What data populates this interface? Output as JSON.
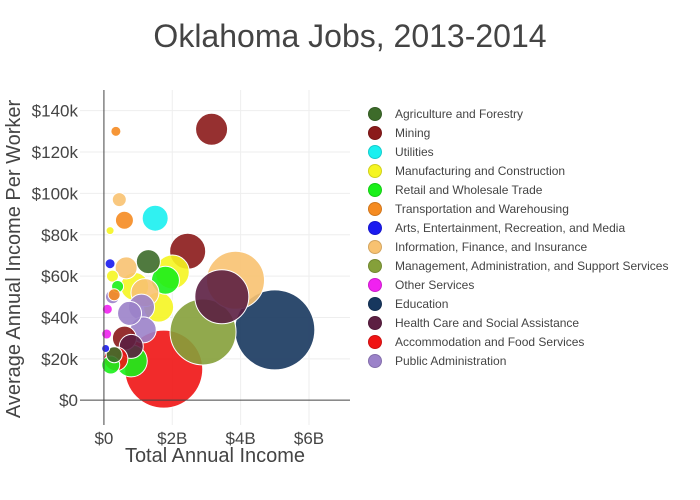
{
  "chart_data": {
    "type": "scatter",
    "subtype": "bubble",
    "title": "Oklahoma Jobs, 2013-2014",
    "xlabel": "Total Annual Income",
    "ylabel": "Average Annual Income Per Worker",
    "xlim": [
      -0.7,
      7.2
    ],
    "ylim": [
      -12000,
      150000
    ],
    "x_ticks": [
      0,
      2,
      4,
      6
    ],
    "x_tick_labels": [
      "$0",
      "$2B",
      "$4B",
      "$6B"
    ],
    "y_ticks": [
      0,
      20000,
      40000,
      60000,
      80000,
      100000,
      120000,
      140000
    ],
    "y_tick_labels": [
      "$0",
      "$20k",
      "$40k",
      "$60k",
      "$80k",
      "$100k",
      "$120k",
      "$140k"
    ],
    "grid": true,
    "legend_position": "right",
    "series": [
      {
        "name": "Agriculture and Forestry",
        "color": "#3d6b2a",
        "points": [
          {
            "x": 1.3,
            "y": 67000,
            "r": 12
          },
          {
            "x": 0.3,
            "y": 22000,
            "r": 8
          }
        ]
      },
      {
        "name": "Mining",
        "color": "#8b1a1a",
        "points": [
          {
            "x": 3.15,
            "y": 131000,
            "r": 16
          },
          {
            "x": 2.45,
            "y": 72000,
            "r": 18
          },
          {
            "x": 0.6,
            "y": 30000,
            "r": 12
          }
        ]
      },
      {
        "name": "Utilities",
        "color": "#19f0f0",
        "points": [
          {
            "x": 1.5,
            "y": 88000,
            "r": 13
          }
        ]
      },
      {
        "name": "Manufacturing and Construction",
        "color": "#f5f521",
        "points": [
          {
            "x": 0.18,
            "y": 82000,
            "r": 4
          },
          {
            "x": 2.0,
            "y": 62000,
            "r": 17
          },
          {
            "x": 0.9,
            "y": 55000,
            "r": 14
          },
          {
            "x": 1.6,
            "y": 45000,
            "r": 15
          },
          {
            "x": 0.25,
            "y": 60000,
            "r": 6
          }
        ]
      },
      {
        "name": "Retail and Wholesale Trade",
        "color": "#19f019",
        "points": [
          {
            "x": 1.8,
            "y": 58000,
            "r": 14
          },
          {
            "x": 0.4,
            "y": 55000,
            "r": 6
          },
          {
            "x": 0.2,
            "y": 17000,
            "r": 9
          },
          {
            "x": 0.8,
            "y": 19000,
            "r": 16
          }
        ]
      },
      {
        "name": "Transportation and Warehousing",
        "color": "#f58b21",
        "points": [
          {
            "x": 0.35,
            "y": 130000,
            "r": 5
          },
          {
            "x": 0.6,
            "y": 87000,
            "r": 9
          },
          {
            "x": 0.3,
            "y": 51000,
            "r": 6
          }
        ]
      },
      {
        "name": "Arts, Entertainment, Recreation, and Media",
        "color": "#1a1af0",
        "points": [
          {
            "x": 0.18,
            "y": 66000,
            "r": 5
          },
          {
            "x": 0.05,
            "y": 25000,
            "r": 4
          }
        ]
      },
      {
        "name": "Information, Finance, and Insurance",
        "color": "#f8c271",
        "points": [
          {
            "x": 0.45,
            "y": 97000,
            "r": 7
          },
          {
            "x": 0.65,
            "y": 64000,
            "r": 11
          },
          {
            "x": 3.85,
            "y": 58000,
            "r": 29
          },
          {
            "x": 1.2,
            "y": 52000,
            "r": 14
          }
        ]
      },
      {
        "name": "Management, Administration, and Support Services",
        "color": "#85a03a",
        "points": [
          {
            "x": 2.9,
            "y": 33000,
            "r": 33
          }
        ]
      },
      {
        "name": "Other Services",
        "color": "#f021f0",
        "points": [
          {
            "x": 0.1,
            "y": 44000,
            "r": 5
          },
          {
            "x": 0.08,
            "y": 32000,
            "r": 5
          }
        ]
      },
      {
        "name": "Education",
        "color": "#17375e",
        "points": [
          {
            "x": 5.0,
            "y": 34000,
            "r": 40
          }
        ]
      },
      {
        "name": "Health Care and Social Assistance",
        "color": "#5c1f42",
        "points": [
          {
            "x": 3.45,
            "y": 50000,
            "r": 27
          },
          {
            "x": 0.8,
            "y": 26000,
            "r": 12
          }
        ]
      },
      {
        "name": "Accommodation and Food Services",
        "color": "#f01414",
        "points": [
          {
            "x": 1.75,
            "y": 15000,
            "r": 39
          },
          {
            "x": 0.35,
            "y": 20000,
            "r": 12
          }
        ]
      },
      {
        "name": "Public Administration",
        "color": "#9b82c9",
        "points": [
          {
            "x": 1.1,
            "y": 45000,
            "r": 13
          },
          {
            "x": 0.75,
            "y": 42000,
            "r": 12
          },
          {
            "x": 1.15,
            "y": 34000,
            "r": 13
          },
          {
            "x": 0.25,
            "y": 50000,
            "r": 7
          }
        ]
      }
    ]
  }
}
